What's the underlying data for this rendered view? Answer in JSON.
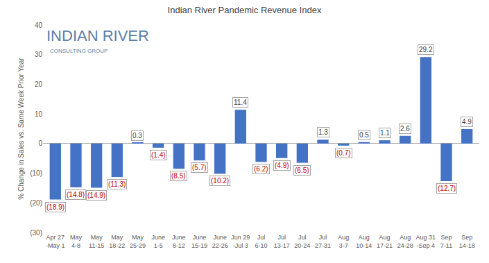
{
  "chart_data": {
    "type": "bar",
    "title": "Indian River Pandemic Revenue Index",
    "y_label": "% Change in Sales vs. Same Week Prior Year",
    "annotations": [
      "INDIAN RIVER",
      "CONSULTING GROUP"
    ],
    "categories": [
      "Apr 27 -May 1",
      "May 4-8",
      "May 11-15",
      "May 18-22",
      "May 25-29",
      "June 1-5",
      "June 8-12",
      "June 15-19",
      "June 22-26",
      "Jun 29 -Jul 3",
      "Jul 6-10",
      "Jul 13-17",
      "Jul 20-24",
      "Jul 27-31",
      "Aug 3-7",
      "Aug 10-14",
      "Aug 17-21",
      "Aug 24-28",
      "Aug 31 -Sep 4",
      "Sep 7-11",
      "Sep 14-18"
    ],
    "values": [
      -18.9,
      -14.8,
      -14.9,
      -11.3,
      0.3,
      -1.4,
      -8.5,
      -5.7,
      -10.2,
      11.4,
      -6.2,
      -4.9,
      -6.5,
      1.3,
      -0.7,
      0.5,
      1.1,
      2.6,
      29.2,
      -12.7,
      4.9
    ],
    "value_labels": [
      "(18.9)",
      "(14.8)",
      "(14.9)",
      "(11.3)",
      "0.3",
      "(1.4)",
      "(8.5)",
      "(5.7)",
      "(10.2)",
      "11.4",
      "(6.2)",
      "(4.9)",
      "(6.5)",
      "1.3",
      "(0.7)",
      "0.5",
      "1.1",
      "2.6",
      "29.2",
      "(12.7)",
      "4.9"
    ],
    "color": "#4472c4",
    "data_labels": true,
    "ylim": [
      -30,
      40
    ],
    "yticks": [
      {
        "value": -30,
        "label": "(30)"
      },
      {
        "value": -20,
        "label": "(20)"
      },
      {
        "value": -10,
        "label": "(10)"
      },
      0,
      10,
      20,
      30,
      40
    ],
    "grid": false
  }
}
